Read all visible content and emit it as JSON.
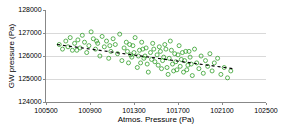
{
  "chart_data": {
    "type": "scatter",
    "x_label": "Atmos. Pressure (Pa)",
    "y_label": "GW pressure (Pa)",
    "xlim": [
      100500,
      102500
    ],
    "xticks": [
      100500,
      100900,
      101300,
      101700,
      102100,
      102500
    ],
    "ylim": [
      124000,
      128000
    ],
    "yticks": [
      124000,
      125000,
      126000,
      127000,
      128000
    ],
    "grid": true,
    "series": [
      {
        "type": "scatter",
        "marker": "circle-open",
        "color": "#33a02c",
        "x": [
          100620,
          100650,
          100680,
          100700,
          100720,
          100740,
          100760,
          100790,
          100810,
          100830,
          100850,
          100870,
          100890,
          100910,
          100930,
          100950,
          100970,
          100990,
          101010,
          101030,
          101050,
          101070,
          101090,
          101110,
          101130,
          101150,
          101170,
          101190,
          101210,
          101230,
          101250,
          101270,
          101290,
          101310,
          101330,
          101350,
          101370,
          101390,
          101410,
          101430,
          101450,
          101470,
          101490,
          101510,
          101530,
          101550,
          101570,
          101590,
          101610,
          101630,
          101650,
          101670,
          101690,
          101710,
          101730,
          101750,
          101770,
          101790,
          101810,
          101830,
          101850,
          101870,
          101890,
          101910,
          101930,
          101950,
          101970,
          101990,
          102010,
          102030,
          102060,
          102090,
          102120,
          102150,
          102180,
          101400,
          101420,
          101460,
          101480,
          101520,
          101540,
          101560,
          101580,
          101600,
          101620,
          101640,
          101660,
          101680,
          101700,
          101720,
          101740,
          101760,
          101780,
          101800,
          101820,
          101340,
          101360,
          101380,
          101300,
          101280,
          101260,
          101240,
          100960,
          100780,
          101080
        ],
        "values": [
          126500,
          126300,
          126650,
          126400,
          126800,
          126250,
          126550,
          126700,
          126350,
          126900,
          126600,
          126150,
          126450,
          127050,
          126750,
          126300,
          126550,
          126000,
          126850,
          126400,
          126650,
          125900,
          126200,
          126750,
          126500,
          126100,
          126950,
          125800,
          126350,
          126600,
          125700,
          126050,
          126450,
          126800,
          125500,
          126250,
          126600,
          125900,
          126350,
          125300,
          126150,
          126550,
          125750,
          126050,
          126400,
          125450,
          125950,
          126300,
          125200,
          126650,
          125650,
          126100,
          125400,
          126450,
          125850,
          125300,
          126200,
          125600,
          125950,
          125150,
          126300,
          125700,
          125450,
          126000,
          125250,
          125800,
          125550,
          126100,
          125350,
          125700,
          125900,
          125200,
          125500,
          125050,
          125350,
          126000,
          125650,
          125850,
          126300,
          125600,
          126200,
          125800,
          126500,
          125500,
          125900,
          126250,
          125350,
          125750,
          126050,
          125550,
          126150,
          125800,
          125400,
          126200,
          125650,
          126000,
          125700,
          126300,
          126150,
          125950,
          126500,
          126200,
          126650,
          126250,
          126450
        ]
      },
      {
        "type": "line",
        "line_style": "dot",
        "color": "#000000",
        "x": [
          100600,
          102200
        ],
        "values": [
          126500,
          125450
        ]
      }
    ]
  }
}
